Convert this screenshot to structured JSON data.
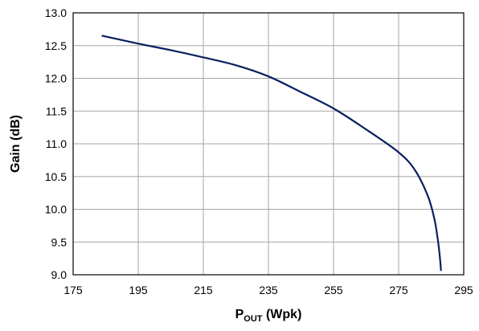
{
  "chart_data": {
    "type": "line",
    "title": "",
    "xlabel": {
      "main": "P",
      "subscript": "OUT",
      "suffix": " (Wpk)"
    },
    "ylabel": "Gain (dB)",
    "xlim": [
      175,
      295
    ],
    "ylim": [
      9.0,
      13.0
    ],
    "x_ticks": [
      "175",
      "195",
      "215",
      "235",
      "255",
      "275",
      "295"
    ],
    "y_ticks": [
      "9.0",
      "9.5",
      "10.0",
      "10.5",
      "11.0",
      "11.5",
      "12.0",
      "12.5",
      "13.0"
    ],
    "grid": true,
    "legend": "none",
    "series": [
      {
        "color": "#0b1f5e",
        "x": [
          184,
          195,
          205,
          215,
          225,
          235,
          245,
          255,
          265,
          275,
          280,
          284,
          286,
          287,
          287.5,
          287.8,
          288
        ],
        "y": [
          12.65,
          12.53,
          12.43,
          12.32,
          12.2,
          12.03,
          11.79,
          11.54,
          11.22,
          10.87,
          10.6,
          10.2,
          9.85,
          9.55,
          9.35,
          9.2,
          9.07
        ]
      }
    ]
  }
}
